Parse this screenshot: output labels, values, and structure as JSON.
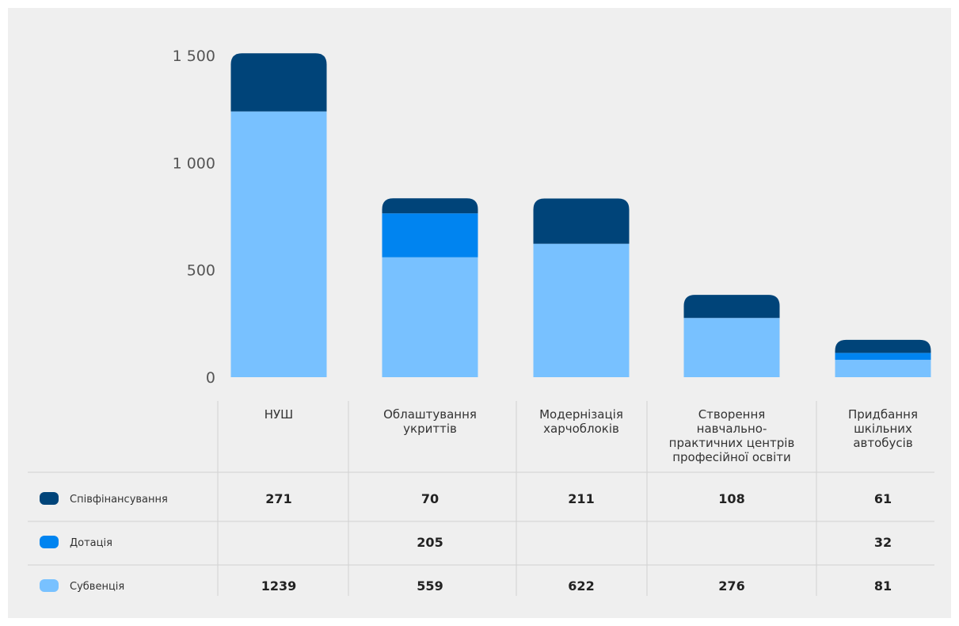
{
  "chart_data": {
    "type": "bar",
    "stacked": true,
    "categories": [
      [
        "НУШ"
      ],
      [
        "Облаштування",
        "укриттів"
      ],
      [
        "Модернізація",
        "харчоблоків"
      ],
      [
        "Створення",
        "навчально-",
        "практичних центрів",
        "професійної освіти"
      ],
      [
        "Придбання",
        "шкільних",
        "автобусів"
      ]
    ],
    "series": [
      {
        "name": "Співфінансування",
        "color": "#004479",
        "values": [
          271,
          70,
          211,
          108,
          61
        ]
      },
      {
        "name": "Дотація",
        "color": "#0084f0",
        "values": [
          null,
          205,
          null,
          null,
          32
        ]
      },
      {
        "name": "Субвенція",
        "color": "#78c1ff",
        "values": [
          1239,
          559,
          622,
          276,
          81
        ]
      }
    ],
    "stack_order": [
      "Субвенція",
      "Дотація",
      "Співфінансування"
    ],
    "ylim": [
      0,
      1500
    ],
    "yticks": [
      0,
      500,
      1000,
      1500
    ],
    "ytick_labels": [
      "0",
      "500",
      "1 000",
      "1 500"
    ],
    "grid": false,
    "legend": "table-left"
  }
}
